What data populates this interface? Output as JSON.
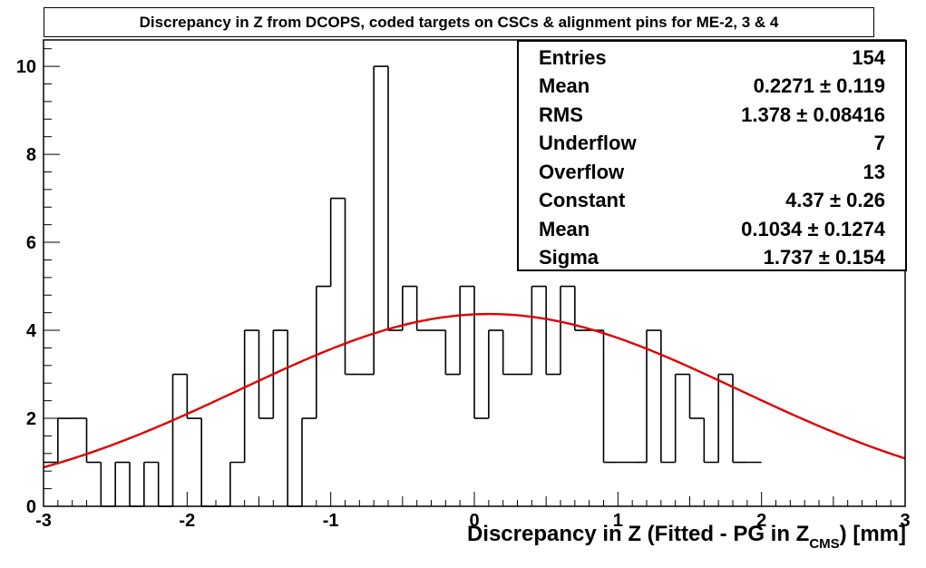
{
  "chart_data": {
    "type": "histogram",
    "title": "Discrepancy in Z from DCOPS, coded targets on CSCs & alignment pins for ME-2, 3 & 4",
    "xlabel_main": "Discrepancy in Z (Fitted - PG in Z",
    "xlabel_sub": "CMS",
    "xlabel_tail": ") [mm]",
    "ylabel": "",
    "xlim": [
      -3,
      3
    ],
    "ylim": [
      0,
      10.6
    ],
    "x_ticks": [
      "-3",
      "-2",
      "-1",
      "0",
      "1",
      "2",
      "3"
    ],
    "y_ticks": [
      "0",
      "2",
      "4",
      "6",
      "8",
      "10"
    ],
    "bin_width": 0.1,
    "bin_edges_start": -3.0,
    "values": [
      1,
      2,
      2,
      1,
      0,
      1,
      0,
      1,
      0,
      3,
      2,
      0,
      0,
      1,
      4,
      2,
      4,
      0,
      2,
      5,
      7,
      3,
      3,
      10,
      4,
      5,
      4,
      4,
      3,
      5,
      2,
      4,
      3,
      3,
      5,
      3,
      5,
      4,
      4,
      1,
      1,
      1,
      4,
      1,
      3,
      2,
      1,
      3,
      1,
      1
    ],
    "fit": {
      "type": "gaussian",
      "constant": 4.37,
      "mean": 0.1034,
      "sigma": 1.737,
      "color": "#e00000"
    },
    "histogram_color": "#000000",
    "stats": [
      {
        "label": "Entries",
        "value": "154"
      },
      {
        "label": "Mean",
        "value": "0.2271 ±  0.119"
      },
      {
        "label": "RMS",
        "value": "1.378 ± 0.08416"
      },
      {
        "label": "Underflow",
        "value": "7"
      },
      {
        "label": "Overflow",
        "value": "13"
      },
      {
        "label": "Constant",
        "value": "4.37 ± 0.26"
      },
      {
        "label": "Mean",
        "value": "0.1034 ± 0.1274"
      },
      {
        "label": "Sigma",
        "value": "1.737 ± 0.154"
      }
    ]
  }
}
